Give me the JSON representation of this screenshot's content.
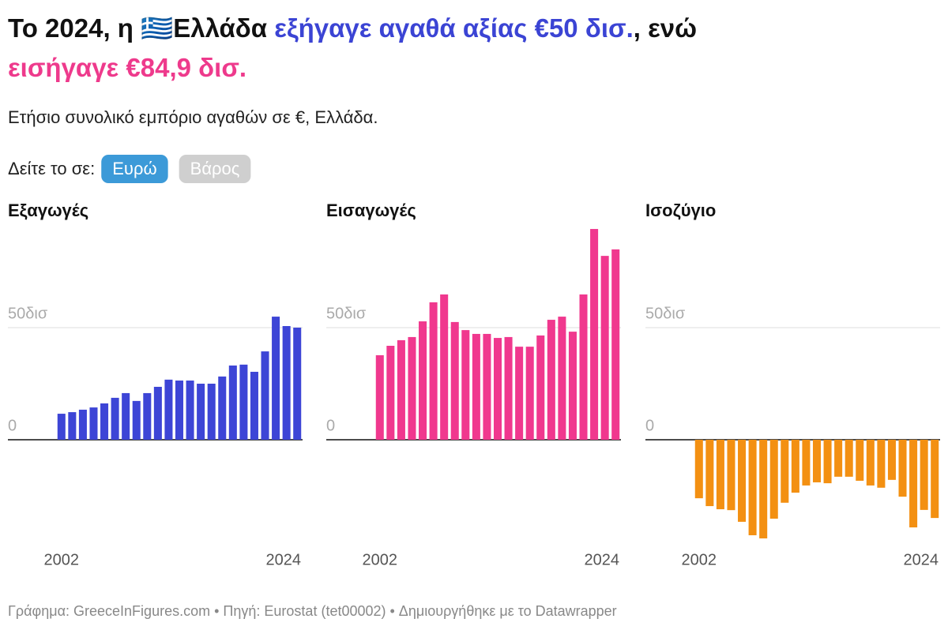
{
  "title": [
    {
      "text": "Το 2024, η 🇬🇷Ελλάδα "
    },
    {
      "text": "εξήγαγε αγαθά αξίας €50 δισ.",
      "color": "#3b44d4"
    },
    {
      "text": ", ενώ "
    },
    {
      "text": "εισήγαγε €84,9 δισ.",
      "color": "#ee3a8c"
    }
  ],
  "subtitle": "Ετήσιο συνολικό εμπόριο αγαθών σε €, Ελλάδα.",
  "toggle": {
    "label": "Δείτε το σε:",
    "options": [
      "Ευρώ",
      "Βάρος"
    ],
    "selected": 0
  },
  "footer": "Γράφημα: GreeceInFigures.com • Πηγή: Eurostat (tet00002) • Δημιουργήθηκε με το Datawrapper",
  "chart_data": [
    {
      "type": "bar",
      "title": "Εξαγωγές",
      "color": "#3d45d6",
      "x": [
        2002,
        2003,
        2004,
        2005,
        2006,
        2007,
        2008,
        2009,
        2010,
        2011,
        2012,
        2013,
        2014,
        2015,
        2016,
        2017,
        2018,
        2019,
        2020,
        2021,
        2022,
        2023,
        2024
      ],
      "values": [
        11.6,
        12.3,
        13.4,
        14.4,
        16.2,
        18.7,
        20.8,
        17.3,
        20.8,
        23.6,
        26.8,
        26.4,
        26.4,
        25,
        25,
        28.2,
        33.1,
        33.5,
        30.3,
        39.4,
        54.9,
        50.7,
        50
      ],
      "ylim": [
        -50,
        100
      ],
      "yticks": [
        0,
        {
          "value": 50,
          "label": "50δισ"
        }
      ],
      "xticks": [
        2002,
        2024
      ]
    },
    {
      "type": "bar",
      "title": "Εισαγωγές",
      "color": "#f0388e",
      "x": [
        2002,
        2003,
        2004,
        2005,
        2006,
        2007,
        2008,
        2009,
        2010,
        2011,
        2012,
        2013,
        2014,
        2015,
        2016,
        2017,
        2018,
        2019,
        2020,
        2021,
        2022,
        2023,
        2024
      ],
      "values": [
        37.7,
        41.9,
        44.4,
        45.8,
        52.8,
        61.3,
        64.8,
        52.5,
        48.9,
        47.2,
        47.2,
        45.4,
        45.8,
        41.5,
        41.5,
        46.5,
        53.5,
        54.9,
        48.2,
        64.8,
        94,
        82,
        84.9
      ],
      "ylim": [
        -50,
        100
      ],
      "yticks": [
        0,
        {
          "value": 50,
          "label": "50δισ"
        }
      ],
      "xticks": [
        2002,
        2024
      ]
    },
    {
      "type": "bar",
      "title": "Ισοζύγιο",
      "color": "#f39012",
      "x": [
        2002,
        2003,
        2004,
        2005,
        2006,
        2007,
        2008,
        2009,
        2010,
        2011,
        2012,
        2013,
        2014,
        2015,
        2016,
        2017,
        2018,
        2019,
        2020,
        2021,
        2022,
        2023,
        2024
      ],
      "values": [
        -26.1,
        -29.6,
        -31,
        -31.4,
        -36.6,
        -42.6,
        -44,
        -35.2,
        -28.1,
        -23.6,
        -20.4,
        -19,
        -19.4,
        -16.5,
        -16.5,
        -18.3,
        -20.4,
        -21.4,
        -17.9,
        -25.4,
        -39.1,
        -31.3,
        -34.9
      ],
      "ylim": [
        -50,
        100
      ],
      "yticks": [
        0,
        {
          "value": 50,
          "label": "50δισ"
        }
      ],
      "xticks": [
        2002,
        2024
      ]
    }
  ]
}
